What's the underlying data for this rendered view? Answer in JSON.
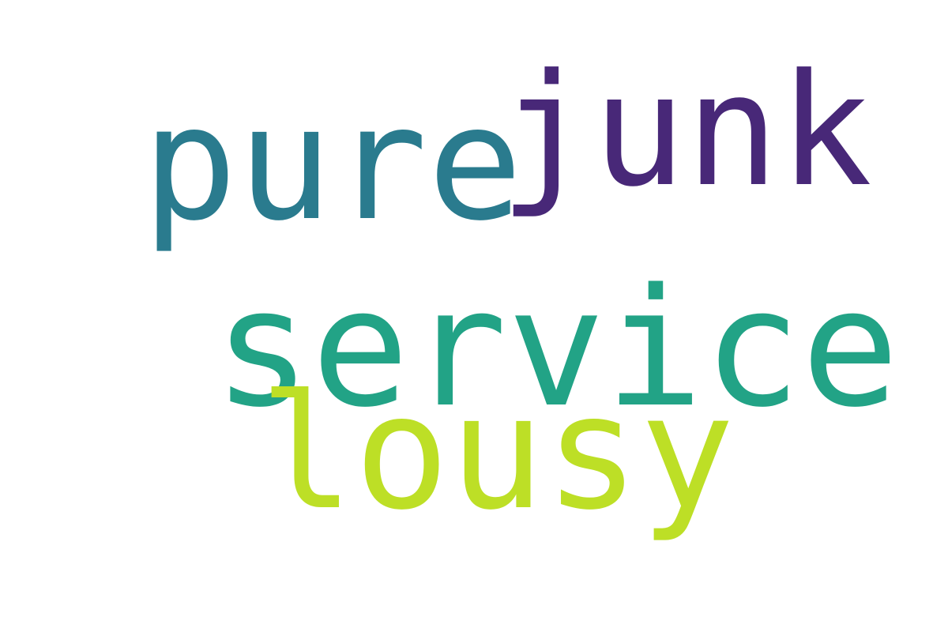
{
  "background_color": "#ffffff",
  "words": {
    "junk": {
      "text": "junk",
      "color": "#482878"
    },
    "pure": {
      "text": "pure",
      "color": "#2a7b8e"
    },
    "service": {
      "text": "service",
      "color": "#22a386"
    },
    "lousy": {
      "text": "lousy",
      "color": "#bddf26"
    }
  }
}
